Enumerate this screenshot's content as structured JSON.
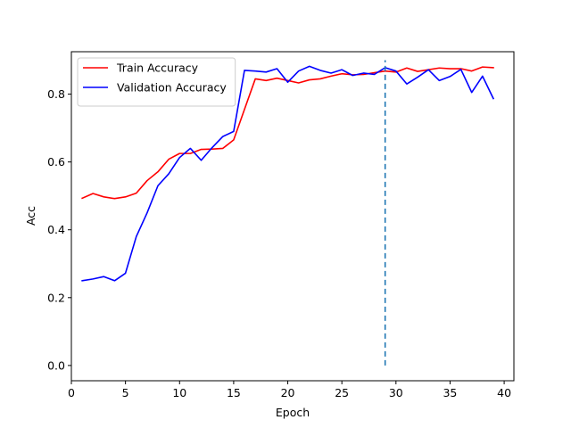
{
  "chart_data": {
    "type": "line",
    "xlabel": "Epoch",
    "ylabel": "Acc",
    "xlim": [
      0.0,
      40.9
    ],
    "ylim": [
      -0.045,
      0.925
    ],
    "x_ticks": [
      0,
      5,
      10,
      15,
      20,
      25,
      30,
      35,
      40
    ],
    "y_ticks": [
      0.0,
      0.2,
      0.4,
      0.6,
      0.8
    ],
    "y_tick_labels": [
      "0.0",
      "0.2",
      "0.4",
      "0.6",
      "0.8"
    ],
    "grid": false,
    "legend_position": "upper-left",
    "series": [
      {
        "name": "Train Accuracy",
        "color": "#ff0000",
        "x": [
          1,
          2,
          3,
          4,
          5,
          6,
          7,
          8,
          9,
          10,
          11,
          12,
          13,
          14,
          15,
          16,
          17,
          18,
          19,
          20,
          21,
          22,
          23,
          24,
          25,
          26,
          27,
          28,
          29,
          30,
          31,
          32,
          33,
          34,
          35,
          36,
          37,
          38,
          39
        ],
        "values": [
          0.493,
          0.507,
          0.497,
          0.492,
          0.497,
          0.508,
          0.545,
          0.571,
          0.608,
          0.625,
          0.625,
          0.637,
          0.638,
          0.64,
          0.665,
          0.755,
          0.845,
          0.84,
          0.847,
          0.84,
          0.833,
          0.842,
          0.845,
          0.853,
          0.86,
          0.857,
          0.858,
          0.863,
          0.868,
          0.865,
          0.877,
          0.867,
          0.872,
          0.877,
          0.875,
          0.875,
          0.868,
          0.88,
          0.878
        ]
      },
      {
        "name": "Validation Accuracy",
        "color": "#0000ff",
        "x": [
          1,
          2,
          3,
          4,
          5,
          6,
          7,
          8,
          9,
          10,
          11,
          12,
          13,
          14,
          15,
          16,
          17,
          18,
          19,
          20,
          21,
          22,
          23,
          24,
          25,
          26,
          27,
          28,
          29,
          30,
          31,
          32,
          33,
          34,
          35,
          36,
          37,
          38,
          39
        ],
        "values": [
          0.25,
          0.255,
          0.262,
          0.25,
          0.272,
          0.38,
          0.45,
          0.53,
          0.565,
          0.613,
          0.64,
          0.605,
          0.642,
          0.675,
          0.69,
          0.87,
          0.868,
          0.865,
          0.875,
          0.835,
          0.868,
          0.882,
          0.87,
          0.862,
          0.872,
          0.855,
          0.862,
          0.858,
          0.878,
          0.868,
          0.83,
          0.85,
          0.872,
          0.84,
          0.852,
          0.873,
          0.805,
          0.853,
          0.787
        ]
      }
    ],
    "annotations": [
      {
        "type": "vline",
        "x": 29,
        "y_from": 0.0,
        "y_to": 0.9,
        "color": "#1f77b4",
        "style": "dashed"
      }
    ]
  }
}
